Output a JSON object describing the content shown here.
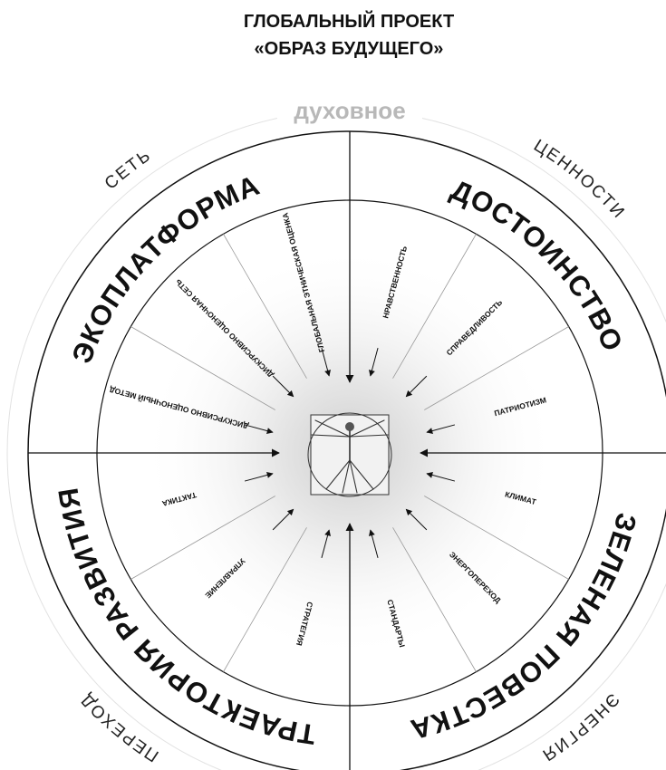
{
  "header": {
    "title": [
      "ГЛОБАЛЬНЫЙ ПРОЕКТ",
      "«ОБРАЗ БУДУЩЕГО»"
    ]
  },
  "top_label": "духовное",
  "outer_labels": [
    "СЕТЬ",
    "ЦЕННОСТИ",
    "ЭНЕРГИЯ",
    "ПЕРЕХОД"
  ],
  "quadrants": [
    {
      "title": "ЭКОПЛАТФОРМА",
      "items": [
        "ДИСКУРСИВНО ОЦЕНОЧНЫЙ МЕТОД",
        "ДИСКУРСИВНО ОЦЕНОЧНАЯ СЕТЬ",
        "ГЛОБАЛЬНАЯ ЭТНИЧЕСКАЯ ОЦЕНКА"
      ]
    },
    {
      "title": "ДОСТОИНСТВО",
      "items": [
        "НРАВСТВЕННОСТЬ",
        "СПРАВЕДЛИВОСТЬ",
        "ПАТРИОТИЗМ"
      ]
    },
    {
      "title": "ЗЕЛЕНАЯ ПОВЕСТКА",
      "items": [
        "КЛИМАТ",
        "ЭНЕРГОПЕРЕХОД",
        "СТАНДАРТЫ"
      ]
    },
    {
      "title": "ТРАЕКТОРИЯ РАЗВИТИЯ",
      "items": [
        "СТРАТЕГИЯ",
        "УПРАВЛЕНИЕ",
        "ТАКТИКА"
      ]
    }
  ]
}
